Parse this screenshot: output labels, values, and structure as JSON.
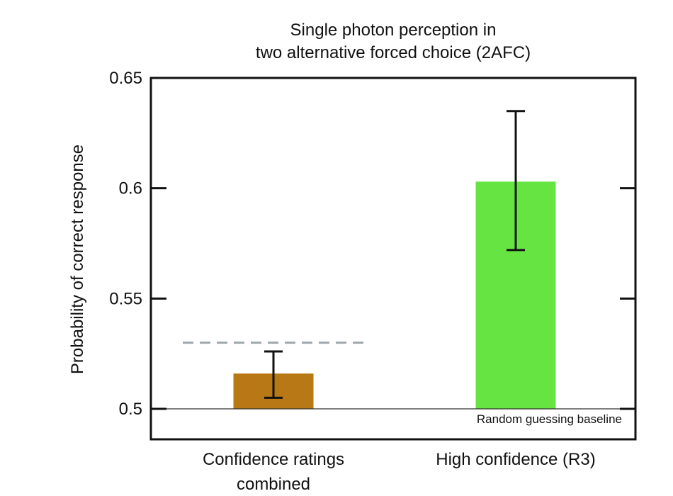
{
  "chart_data": {
    "type": "bar",
    "title_lines": [
      "Single photon perception in",
      "two alternative forced choice (2AFC)"
    ],
    "xlabel": "",
    "ylabel": "Probability of correct response",
    "ylim": [
      0.5,
      0.65
    ],
    "yticks": [
      {
        "value": 0.5,
        "label": "0.5"
      },
      {
        "value": 0.55,
        "label": "0.55"
      },
      {
        "value": 0.6,
        "label": "0.6"
      },
      {
        "value": 0.65,
        "label": "0.65"
      }
    ],
    "categories": [
      {
        "lines": [
          "Confidence ratings",
          "combined"
        ]
      },
      {
        "lines": [
          "High confidence (R3)"
        ]
      }
    ],
    "values": [
      0.516,
      0.603
    ],
    "error_low": [
      0.505,
      0.572
    ],
    "error_high": [
      0.526,
      0.635
    ],
    "bar_colors": [
      "#b87816",
      "#66e542"
    ],
    "reference_line": {
      "value": 0.53,
      "color": "#9fa9ad",
      "style": "dashed"
    },
    "baseline": {
      "value": 0.5,
      "label": "Random guessing baseline"
    },
    "grid": false
  }
}
